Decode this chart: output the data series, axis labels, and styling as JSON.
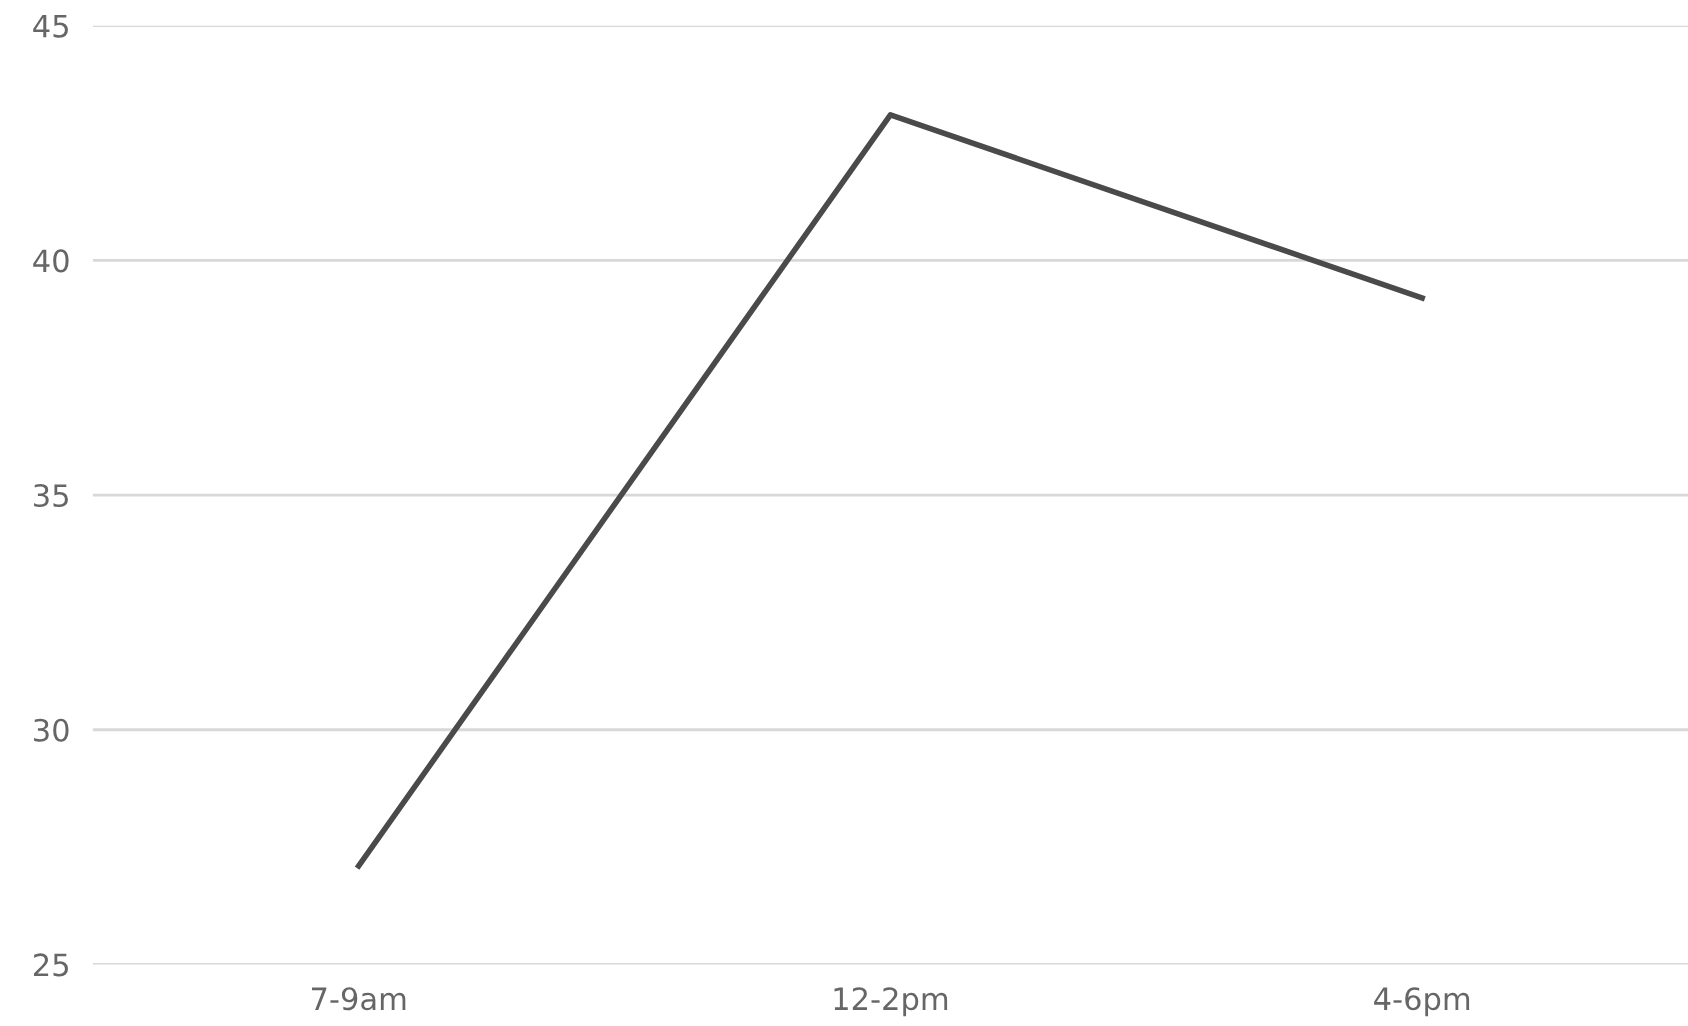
{
  "chart_data": {
    "type": "line",
    "categories": [
      "7-9am",
      "12-2pm",
      "4-6pm"
    ],
    "series": [
      {
        "color": "#4a4a4a",
        "values": [
          27.1,
          43.1,
          39.2
        ]
      }
    ],
    "ylim": [
      25,
      45
    ],
    "yticks": [
      25,
      30,
      35,
      40,
      45
    ],
    "grid": "y",
    "marker": "none",
    "line_style": "solid"
  }
}
